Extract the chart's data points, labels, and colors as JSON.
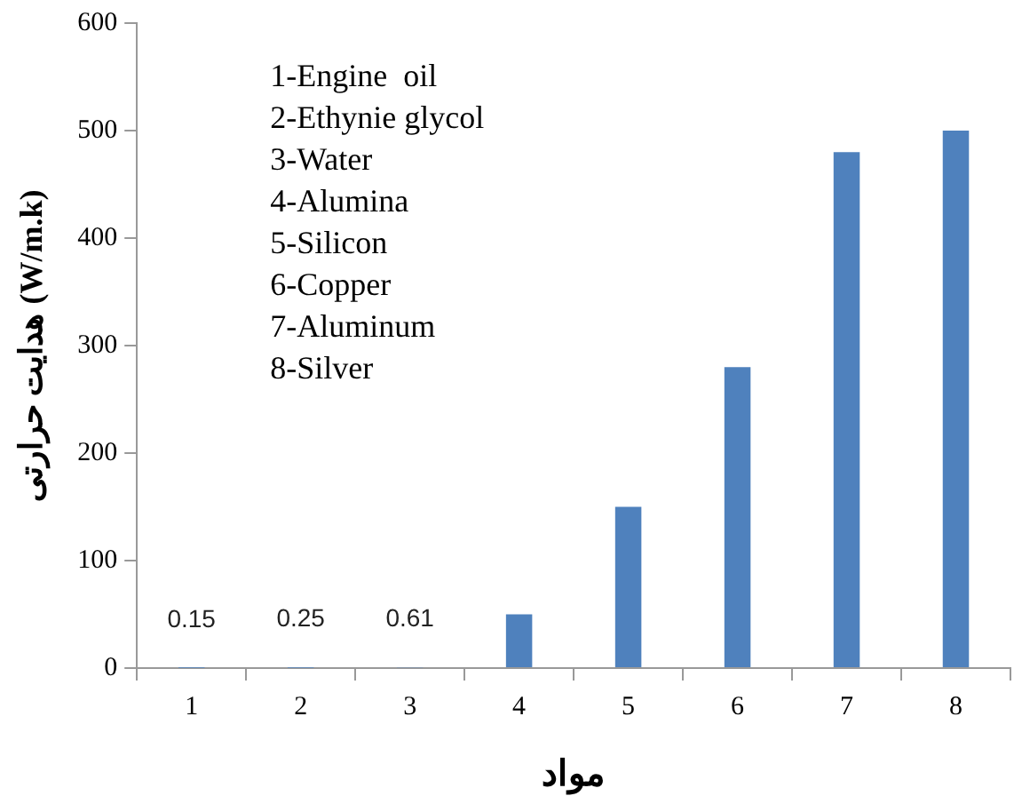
{
  "chart_data": {
    "type": "bar",
    "xlabel": "مواد",
    "ylabel": "هدایت حرارتی (W/m.k)",
    "categories": [
      "1",
      "2",
      "3",
      "4",
      "5",
      "6",
      "7",
      "8"
    ],
    "values": [
      0.15,
      0.25,
      0.61,
      50,
      150,
      280,
      480,
      500
    ],
    "value_labels": [
      "0.15",
      "0.25",
      "0.61",
      null,
      null,
      null,
      null,
      null
    ],
    "color": "#4f81bd",
    "ylim": [
      0,
      600
    ],
    "yticks": [
      0,
      100,
      200,
      300,
      400,
      500,
      600
    ],
    "grid": false,
    "legend": false,
    "annotations": [
      "1-Engine  oil",
      "2-Ethynie glycol",
      "3-Water",
      "4-Alumina",
      "5-Silicon",
      "6-Copper",
      "7-Aluminum",
      "8-Silver"
    ]
  }
}
